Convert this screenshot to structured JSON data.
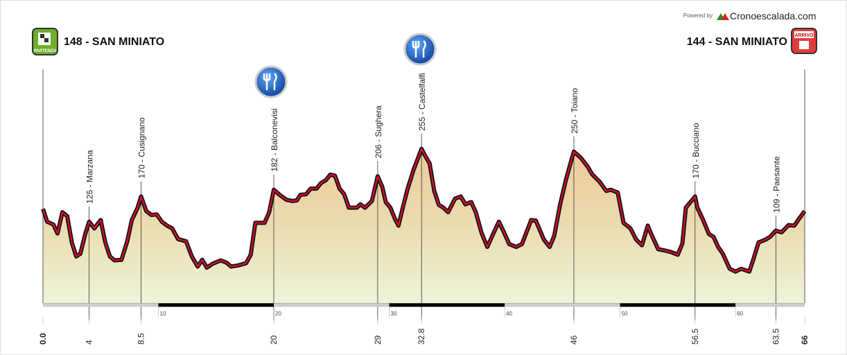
{
  "chart_data": {
    "type": "elevation",
    "powered_by": "Powered by",
    "brand": "Cronoescalada.com",
    "start": {
      "label": "148 - SAN MINIATO",
      "badge": "PARTENZA"
    },
    "finish": {
      "label": "144 - SAN MINIATO",
      "badge": "ARRIVO"
    },
    "x": [
      0,
      0.36,
      0.9,
      1.26,
      1.68,
      2.1,
      2.5,
      2.88,
      3.24,
      3.66,
      4,
      4.45,
      5,
      5.4,
      5.8,
      6.2,
      6.8,
      7.3,
      7.7,
      8.2,
      8.5,
      8.95,
      9.4,
      9.85,
      10.3,
      10.75,
      11.2,
      11.7,
      12.4,
      12.9,
      13.4,
      13.8,
      14.2,
      14.7,
      15.4,
      15.9,
      16.3,
      16.9,
      17.6,
      18,
      18.4,
      19.2,
      19.6,
      20,
      20.5,
      21.1,
      21.6,
      22,
      22.3,
      22.8,
      23.2,
      23.7,
      24.1,
      24.5,
      24.9,
      25.3,
      25.7,
      26.1,
      26.5,
      27.2,
      27.5,
      27.9,
      28.5,
      29,
      29.4,
      29.7,
      30.1,
      30.5,
      30.8,
      31.2,
      31.6,
      32.1,
      32.8,
      33.1,
      33.5,
      33.9,
      34.3,
      34.7,
      35.1,
      35.7,
      36.2,
      36.6,
      37.1,
      37.5,
      38,
      38.5,
      39,
      39.5,
      39.9,
      40.4,
      41,
      41.5,
      42.3,
      42.7,
      43.4,
      43.9,
      44.3,
      44.8,
      45.3,
      45.8,
      46,
      46.6,
      47.2,
      47.6,
      48.2,
      48.8,
      49.2,
      49.8,
      50.3,
      50.9,
      51.4,
      51.9,
      52.4,
      52.7,
      53.3,
      53.8,
      54.4,
      55,
      55.4,
      55.7,
      56.5,
      56.7,
      57.2,
      57.7,
      58.1,
      58.5,
      58.9,
      59.5,
      60,
      60.5,
      61.2,
      61.6,
      62,
      62.6,
      63,
      63.5,
      64,
      64.6,
      65.1,
      65.5,
      66
    ],
    "values": [
      148,
      125,
      120,
      104,
      142,
      135,
      88,
      63,
      68,
      103,
      125,
      113,
      128,
      88,
      63,
      56,
      57,
      90,
      128,
      150,
      170,
      144,
      137,
      138,
      125,
      118,
      113,
      94,
      90,
      63,
      45,
      57,
      43,
      50,
      56,
      52,
      45,
      47,
      51,
      66,
      123,
      123,
      142,
      182,
      173,
      164,
      162,
      163,
      173,
      174,
      184,
      184,
      194,
      199,
      209,
      207,
      184,
      174,
      150,
      150,
      156,
      150,
      162,
      206,
      187,
      160,
      150,
      130,
      118,
      152,
      184,
      217,
      255,
      243,
      229,
      180,
      155,
      150,
      142,
      166,
      170,
      156,
      160,
      142,
      105,
      80,
      103,
      125,
      108,
      85,
      80,
      85,
      128,
      127,
      93,
      80,
      100,
      155,
      199,
      236,
      250,
      239,
      223,
      209,
      197,
      180,
      182,
      177,
      123,
      113,
      93,
      83,
      118,
      103,
      76,
      74,
      71,
      66,
      86,
      150,
      170,
      150,
      128,
      103,
      98,
      80,
      68,
      41,
      36,
      41,
      36,
      61,
      88,
      93,
      98,
      109,
      106,
      119,
      118,
      130,
      144
    ],
    "xlim": [
      0,
      66
    ],
    "ylim": [
      -20,
      330
    ],
    "xticks": [
      10,
      20,
      30,
      40,
      50,
      60
    ],
    "km_labels": [
      {
        "value": 0,
        "label": "0.0"
      },
      4,
      8.5,
      20,
      29,
      32.8,
      46,
      56.5,
      63.5,
      66
    ],
    "waypoints": [
      {
        "km": 4,
        "label": "125 - Marzana"
      },
      {
        "km": 8.5,
        "label": "170 - Cusignano"
      },
      {
        "km": 20,
        "label": "182 - Balconevisi"
      },
      {
        "km": 29,
        "label": "206 - Sughera"
      },
      {
        "km": 32.8,
        "label": "255 - Castelfalfi"
      },
      {
        "km": 46,
        "label": "250 - Toiano"
      },
      {
        "km": 56.5,
        "label": "170 - Bucciano"
      },
      {
        "km": 63.5,
        "label": "109 - Paesante"
      }
    ],
    "line_color": "#c8102e"
  }
}
